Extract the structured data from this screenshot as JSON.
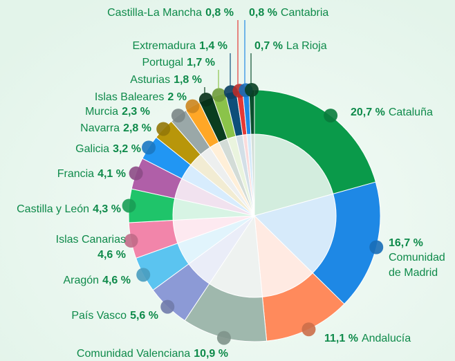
{
  "chart_data": {
    "type": "pie",
    "categories": [
      "Cataluña",
      "Comunidad de Madrid",
      "Andalucía",
      "Comunidad Valenciana",
      "País Vasco",
      "Aragón",
      "Islas Canarias",
      "Castilla y León",
      "Francia",
      "Galicia",
      "Navarra",
      "Murcia",
      "Islas Baleares",
      "Asturias",
      "Portugal",
      "Extremadura",
      "Castilla-La Mancha",
      "Cantabria",
      "La Rioja"
    ],
    "values": [
      20.7,
      16.7,
      11.1,
      10.9,
      5.6,
      4.6,
      4.6,
      4.3,
      4.1,
      3.2,
      2.8,
      2.3,
      2,
      1.8,
      1.7,
      1.4,
      0.8,
      0.8,
      0.7
    ],
    "value_labels": [
      "20,7 %",
      "16,7 %",
      "11,1 %",
      "10,9 %",
      "5,6 %",
      "4,6 %",
      "4,6 %",
      "4,3 %",
      "4,1 %",
      "3,2 %",
      "2,8 %",
      "2,3 %",
      "2 %",
      "1,8 %",
      "1,7 %",
      "1,4 %",
      "0,8 %",
      "0,8 %",
      "0,7 %"
    ],
    "colors": [
      "#0a9a4a",
      "#1e88e5",
      "#ff8a5c",
      "#9fb8ad",
      "#8c9ad6",
      "#5bc4f0",
      "#f285aa",
      "#1fc46a",
      "#b05fa8",
      "#2196f3",
      "#b8960a",
      "#9aa8a8",
      "#ffa726",
      "#0a3d1f",
      "#8bc34a",
      "#0d4f7a",
      "#e53935",
      "#1e88e5",
      "#0b4f2e"
    ]
  }
}
